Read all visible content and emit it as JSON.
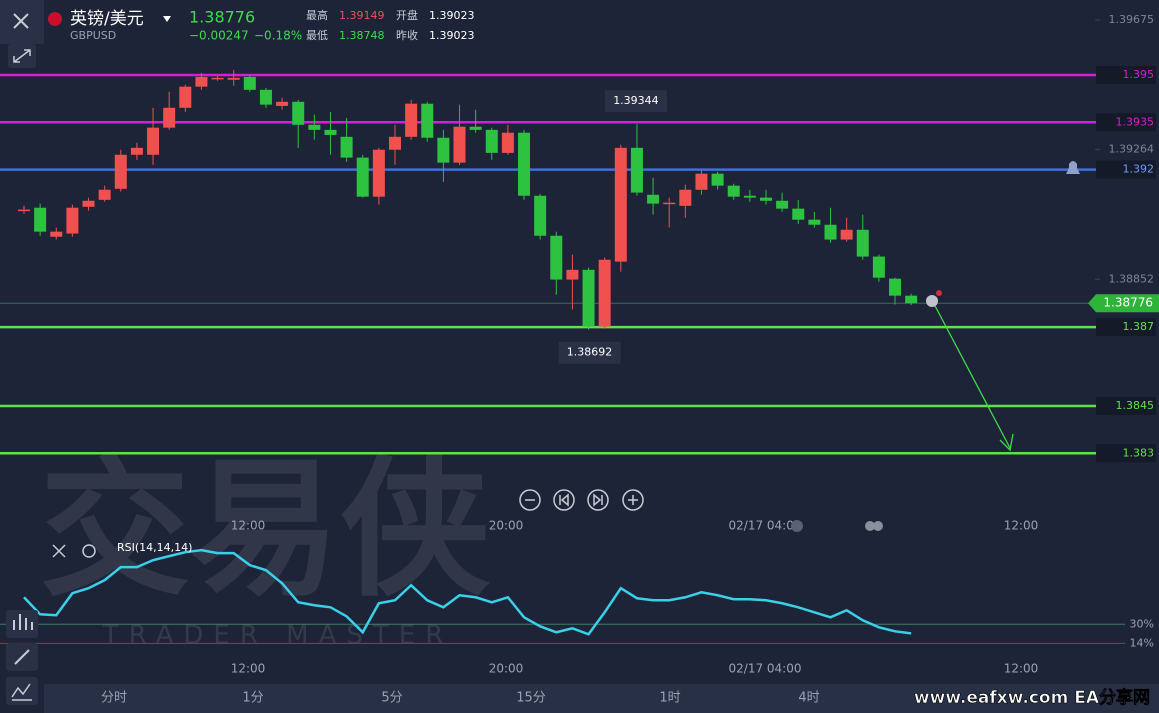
{
  "header": {
    "symbol": "英镑/美元",
    "code": "GBPUSD",
    "change": "−0.00247",
    "change_pct": "−0.18%",
    "high_label": "最高",
    "high": "1.39149",
    "low_label": "最低",
    "low": "1.38748",
    "open_label": "开盘",
    "open": "1.39023",
    "prev_close_label": "昨收",
    "prev_close": "1.39023"
  },
  "chart_data": [
    {
      "type": "candlestick",
      "open": [
        1.39073,
        1.39079,
        1.38987,
        1.38997,
        1.39082,
        1.39104,
        1.39139,
        1.39247,
        1.39247,
        1.39333,
        1.39396,
        1.39463,
        1.39488,
        1.39485,
        1.39494,
        1.39453,
        1.39402,
        1.39415,
        1.39342,
        1.39326,
        1.39304,
        1.39238,
        1.39114,
        1.39263,
        1.39304,
        1.39409,
        1.39301,
        1.39222,
        1.39336,
        1.39326,
        1.39253,
        1.39317,
        1.39117,
        1.3899,
        1.38851,
        1.38882,
        1.38702,
        1.38908,
        1.39269,
        1.3912,
        1.39095,
        1.39085,
        1.39136,
        1.39187,
        1.39149,
        1.39117,
        1.39111,
        1.39101,
        1.39076,
        1.39041,
        1.39025,
        1.38978,
        1.39009,
        1.38924,
        1.38854,
        1.388
      ],
      "high": [
        1.39085,
        1.39092,
        1.39016,
        1.39089,
        1.39111,
        1.39149,
        1.39263,
        1.39285,
        1.39396,
        1.39447,
        1.39469,
        1.39507,
        1.39497,
        1.39516,
        1.39501,
        1.39459,
        1.39428,
        1.39421,
        1.39374,
        1.39383,
        1.39364,
        1.39247,
        1.39269,
        1.39342,
        1.39421,
        1.39415,
        1.39326,
        1.39406,
        1.3939,
        1.39333,
        1.39342,
        1.39326,
        1.39123,
        1.39003,
        1.3893,
        1.38889,
        1.38921,
        1.39279,
        1.39344,
        1.39174,
        1.39111,
        1.39152,
        1.39199,
        1.39193,
        1.39155,
        1.39136,
        1.39136,
        1.39127,
        1.39104,
        1.39066,
        1.39079,
        1.39047,
        1.39057,
        1.3893,
        1.38857,
        1.38806
      ],
      "low": [
        1.3906,
        1.3899,
        1.38978,
        1.38987,
        1.3907,
        1.39098,
        1.3913,
        1.39231,
        1.39215,
        1.39326,
        1.39383,
        1.39453,
        1.39482,
        1.39466,
        1.39447,
        1.39396,
        1.3939,
        1.39269,
        1.39295,
        1.39247,
        1.39225,
        1.39111,
        1.39089,
        1.39215,
        1.39295,
        1.39288,
        1.39161,
        1.39215,
        1.39317,
        1.39231,
        1.39247,
        1.39104,
        1.38978,
        1.38803,
        1.38756,
        1.38692,
        1.38695,
        1.38876,
        1.39117,
        1.39057,
        1.39016,
        1.39047,
        1.3912,
        1.39136,
        1.39104,
        1.39098,
        1.39089,
        1.39066,
        1.39028,
        1.39016,
        1.38968,
        1.38971,
        1.38914,
        1.38844,
        1.38772,
        1.3877
      ],
      "close": [
        1.39073,
        1.39003,
        1.39003,
        1.39079,
        1.39101,
        1.39136,
        1.39247,
        1.39269,
        1.39333,
        1.39396,
        1.39463,
        1.39494,
        1.39491,
        1.39491,
        1.39453,
        1.39406,
        1.39415,
        1.39342,
        1.39326,
        1.3931,
        1.39238,
        1.39114,
        1.39263,
        1.39304,
        1.39409,
        1.39301,
        1.39222,
        1.39336,
        1.39326,
        1.39253,
        1.39317,
        1.39117,
        1.3899,
        1.38851,
        1.38882,
        1.38702,
        1.38914,
        1.39269,
        1.39127,
        1.39092,
        1.39095,
        1.39136,
        1.39187,
        1.39149,
        1.39114,
        1.39111,
        1.39101,
        1.39076,
        1.39041,
        1.39025,
        1.38978,
        1.39009,
        1.38924,
        1.38857,
        1.388,
        1.38776
      ],
      "up_color": "#f0514f",
      "down_color": "#2dc23f",
      "ylim": [
        1.3812,
        1.39738
      ],
      "yticks": [
        1.39675,
        1.39264,
        1.38852
      ],
      "x_labels": [
        "12:00",
        "20:00",
        "02/17 04:00",
        "12:00"
      ],
      "last_price": 1.38776,
      "last_price_color": "#2fb43a",
      "levels": [
        {
          "value": 1.395,
          "color": "#d61ed6"
        },
        {
          "value": 1.3935,
          "color": "#d61ed6"
        },
        {
          "value": 1.392,
          "color": "#3f6fe0"
        },
        {
          "value": 1.387,
          "color": "#62e04a"
        },
        {
          "value": 1.3845,
          "color": "#62e04a"
        },
        {
          "value": 1.383,
          "color": "#62e04a"
        }
      ]
    },
    {
      "type": "line",
      "title": "RSI(14,14,14)",
      "color": "#3ad0ea",
      "values": [
        52.7,
        38.4,
        37.6,
        56.1,
        60.3,
        67.1,
        78.0,
        78.0,
        83.9,
        87.3,
        90.6,
        92.3,
        89.8,
        89.8,
        79.7,
        75.5,
        64.5,
        48.5,
        46.0,
        44.3,
        36.7,
        23.3,
        47.7,
        50.2,
        62.8,
        50.2,
        44.3,
        54.4,
        52.7,
        48.5,
        52.7,
        35.9,
        28.3,
        23.3,
        26.6,
        21.6,
        40.1,
        60.3,
        51.9,
        50.2,
        50.2,
        52.7,
        56.9,
        54.4,
        51.1,
        51.1,
        50.2,
        47.7,
        44.3,
        40.1,
        35.9,
        41.8,
        33.4,
        27.5,
        24.1,
        22.4
      ],
      "ylim": [
        0,
        100
      ],
      "yticks": [
        {
          "value": 30,
          "label": "30%"
        },
        {
          "value": 14,
          "label": "14%"
        }
      ],
      "ytick_colors": [
        "#3f7d62",
        "#a8323f"
      ]
    }
  ],
  "tabs": [
    "分时",
    "1分",
    "5分",
    "15分",
    "1时",
    "4时"
  ],
  "watermark": {
    "logo": "交易侠",
    "subtitle": "TRADER MASTER",
    "site": "www.eafxw.com  EA分享网"
  }
}
